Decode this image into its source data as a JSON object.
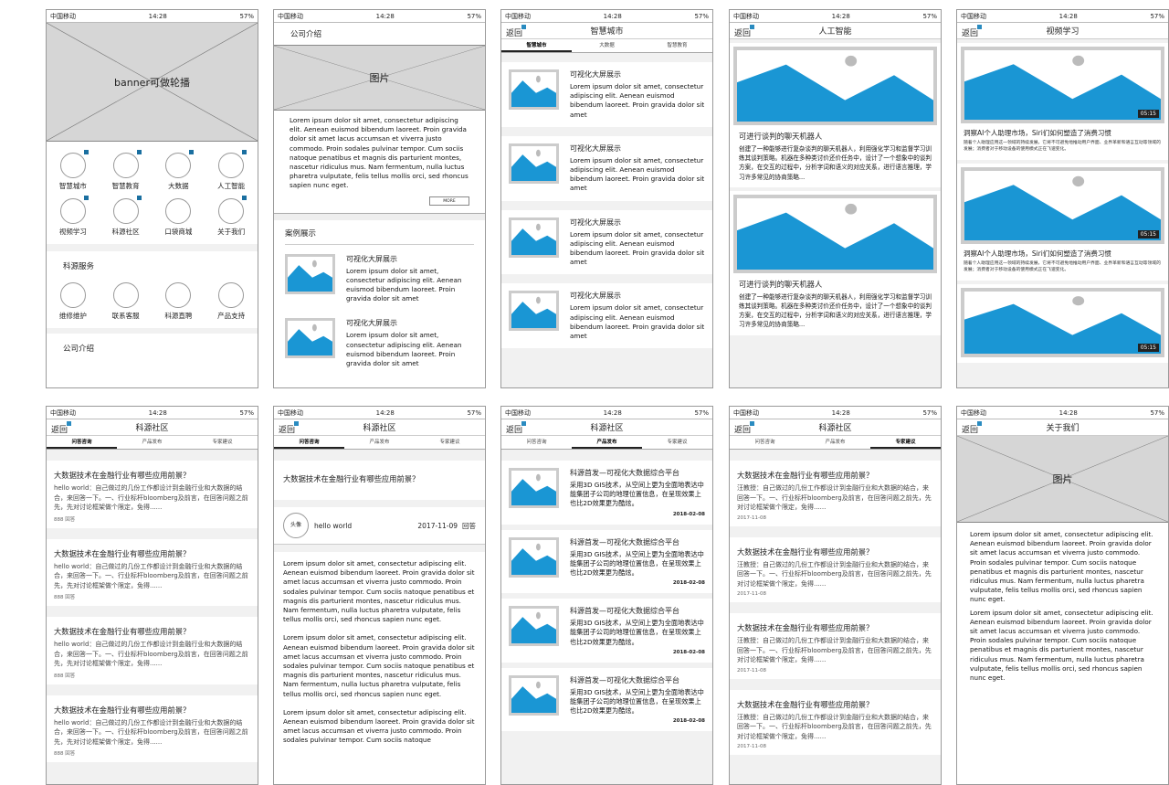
{
  "status": {
    "carrier": "中国移动",
    "time": "14:28",
    "battery": "57%"
  },
  "back_label": "返回",
  "colors": {
    "image_blue": "#1a96d4",
    "badge": "#1a6fa0"
  },
  "lorem_short": "Lorem ipsum dolor sit amet, consectetur adipiscing elit. Aenean euismod bibendum laoreet. Proin gravida dolor sit amet",
  "home": {
    "banner": "banner可做轮播",
    "grid": [
      "智慧城市",
      "智慧教育",
      "大数据",
      "人工智能",
      "视频学习",
      "科源社区",
      "口袋商城",
      "关于我们"
    ],
    "service_title": "科源服务",
    "services": [
      "维修维护",
      "联系客服",
      "科源直聘",
      "产品支持"
    ],
    "company": "公司介绍"
  },
  "intro": {
    "title": "公司介绍",
    "image": "图片",
    "text": "Lorem ipsum dolor sit amet, consectetur adipiscing elit. Aenean euismod bibendum laoreet. Proin gravida dolor sit amet lacus accumsan et viverra justo commodo. Proin sodales pulvinar tempor. Cum sociis natoque penatibus et magnis dis parturient montes, nascetur ridiculus mus. Nam fermentum, nulla luctus pharetra vulputate, felis tellus mollis orci, sed rhoncus sapien nunc eget.",
    "more": "MORE",
    "cases_title": "案例展示",
    "case_title": "可视化大屏展示"
  },
  "city": {
    "title": "智慧城市",
    "tabs": [
      "智慧城市",
      "大数据",
      "智慧教育"
    ],
    "item_title": "可视化大屏展示"
  },
  "ai": {
    "title": "人工智能",
    "card_title": "可进行谈判的聊天机器人",
    "card_text": "创建了一种能够进行复杂谈判的聊天机器人，利用强化学习和监督学习训练其谈判策略。机器在多种类讨价还价任务中，设计了一个想象中的谈判方案，在交互的过程中，分析字词和语义的对应关系，进行语言推理，学习许多常见的协商策略..."
  },
  "video": {
    "title": "视频学习",
    "duration": "05:15",
    "caption": "洞察AI个人助理市场，Siri们如何塑造了消费习惯",
    "desc": "随着个人助理应用这一领域的持续发展，它将不可避免地推动用户界面、业界革新和语言互动等领域的发展；消费者对于移动设备的使用模式正在飞速变化。"
  },
  "community": {
    "title": "科源社区",
    "tabs": [
      "问答咨询",
      "产品发布",
      "专家建议"
    ],
    "question": "大数据技术在金融行业有哪些应用前景？",
    "answer": "hello world：自己做过的几份工作都设计到金融行业和大数据的结合，来回答一下。一、行业标杆bloomberg及前言，在回答问题之前先，先对讨论框架做个限定，免得......",
    "count": "888 回答"
  },
  "detail": {
    "avatar": "头像",
    "user": "hello  world",
    "date": "2017-11-09",
    "reply": "回答",
    "paras": [
      "Lorem ipsum dolor sit amet, consectetur adipiscing elit. Aenean euismod bibendum laoreet. Proin gravida dolor sit amet lacus accumsan et viverra justo commodo. Proin sodales pulvinar tempor. Cum sociis natoque penatibus et magnis dis parturient montes, nascetur ridiculus mus. Nam fermentum, nulla luctus pharetra vulputate, felis tellus mollis orci, sed rhoncus sapien nunc eget.",
      "Lorem ipsum dolor sit amet, consectetur adipiscing elit. Aenean euismod bibendum laoreet. Proin gravida dolor sit amet lacus accumsan et viverra justo commodo. Proin sodales pulvinar tempor. Cum sociis natoque penatibus et magnis dis parturient montes, nascetur ridiculus mus. Nam fermentum, nulla luctus pharetra vulputate, felis tellus mollis orci, sed rhoncus sapien nunc eget.",
      "Lorem ipsum dolor sit amet, consectetur adipiscing elit. Aenean euismod bibendum laoreet. Proin gravida dolor sit amet lacus accumsan et viverra justo commodo. Proin sodales pulvinar tempor. Cum sociis natoque"
    ]
  },
  "products": {
    "title": "科源首发—可视化大数据综合平台",
    "text": "采用3D GIS技术，从空间上更为全面地表达中能集团子公司的地理位置信息，在呈现效果上也比2D效果更为酷炫。",
    "date": "2018-02-08"
  },
  "expert": {
    "answer": "汪教授：自己做过的几份工作都设计到金融行业和大数据的结合，来回答一下。一、行业标杆bloomberg及前言，在回答问题之前先，先对讨论框架做个限定，免得......",
    "date": "2017-11-08"
  },
  "about": {
    "title": "关于我们",
    "image": "图片",
    "paras": [
      "Lorem ipsum dolor sit amet, consectetur adipiscing elit. Aenean euismod bibendum laoreet. Proin gravida dolor sit amet lacus accumsan et viverra justo commodo. Proin sodales pulvinar tempor. Cum sociis natoque penatibus et magnis dis parturient montes, nascetur ridiculus mus. Nam fermentum, nulla luctus pharetra vulputate, felis tellus mollis orci, sed rhoncus sapien nunc eget.",
      "Lorem ipsum dolor sit amet, consectetur adipiscing elit. Aenean euismod bibendum laoreet. Proin gravida dolor sit amet lacus accumsan et viverra justo commodo. Proin sodales pulvinar tempor. Cum sociis natoque penatibus et magnis dis parturient montes, nascetur ridiculus mus. Nam fermentum, nulla luctus pharetra vulputate, felis tellus mollis orci, sed rhoncus sapien nunc eget."
    ]
  }
}
